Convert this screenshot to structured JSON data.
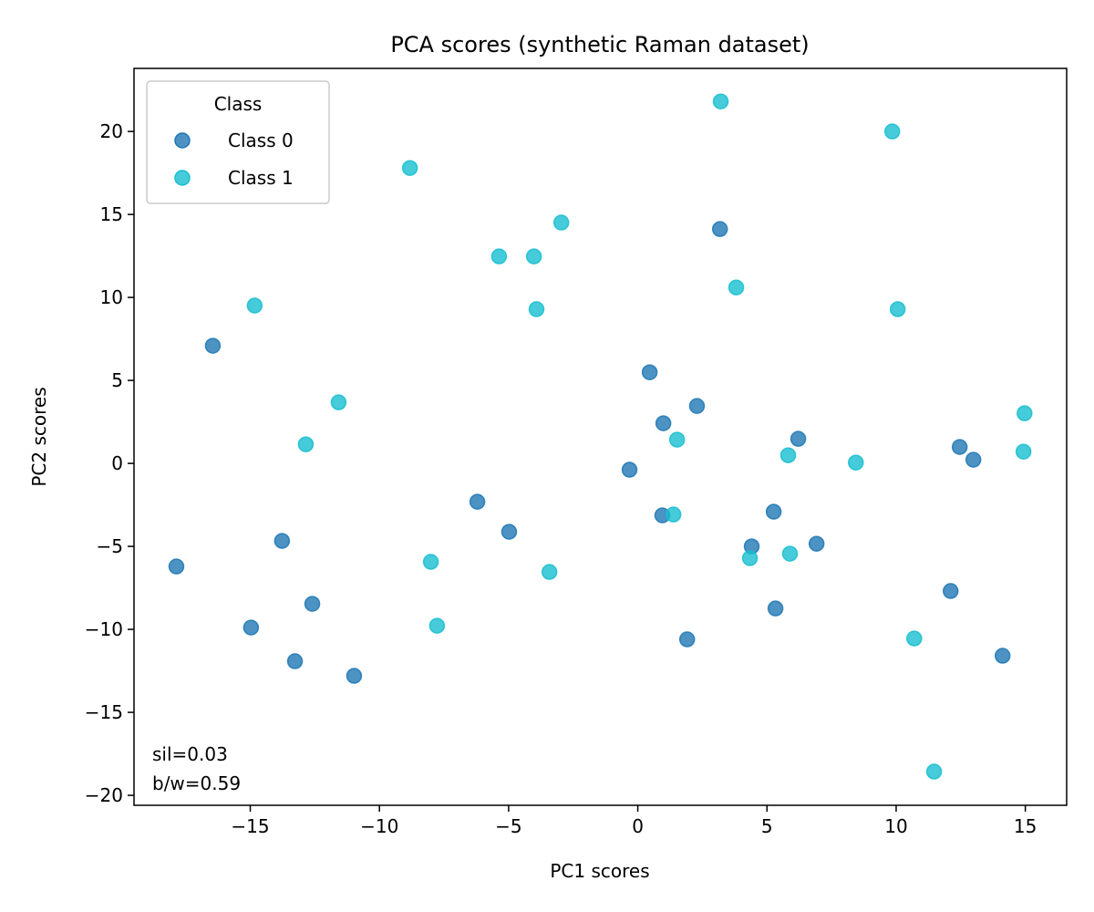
{
  "chart_data": {
    "type": "scatter",
    "title": "PCA scores (synthetic Raman dataset)",
    "xlabel": "PC1 scores",
    "ylabel": "PC2 scores",
    "xlim": [
      -19.5,
      16.6
    ],
    "ylim": [
      -20.6,
      23.8
    ],
    "xticks": [
      -15,
      -10,
      -5,
      0,
      5,
      10,
      15
    ],
    "yticks": [
      -20,
      -15,
      -10,
      -5,
      0,
      5,
      10,
      15,
      20
    ],
    "xtick_labels": [
      "−15",
      "−10",
      "−5",
      "0",
      "5",
      "10",
      "15"
    ],
    "ytick_labels": [
      "−20",
      "−15",
      "−10",
      "−5",
      "0",
      "5",
      "10",
      "15",
      "20"
    ],
    "grid": false,
    "legend": {
      "title": "Class",
      "placement": "top-left"
    },
    "annotations": [
      "sil=0.03",
      "b/w=0.59"
    ],
    "series": [
      {
        "name": "Class 0",
        "color": "#1f77b4",
        "points": [
          [
            -16.45,
            7.09
          ],
          [
            -17.86,
            -6.21
          ],
          [
            -14.97,
            -9.89
          ],
          [
            -13.77,
            -4.67
          ],
          [
            -12.6,
            -8.46
          ],
          [
            -13.27,
            -11.92
          ],
          [
            -10.98,
            -12.8
          ],
          [
            -6.21,
            -2.31
          ],
          [
            -4.98,
            -4.12
          ],
          [
            -0.32,
            -0.38
          ],
          [
            0.46,
            5.49
          ],
          [
            0.99,
            2.42
          ],
          [
            0.95,
            -3.13
          ],
          [
            2.29,
            3.46
          ],
          [
            1.91,
            -10.6
          ],
          [
            3.18,
            14.12
          ],
          [
            4.41,
            -5.0
          ],
          [
            5.26,
            -2.91
          ],
          [
            5.33,
            -8.74
          ],
          [
            6.21,
            1.48
          ],
          [
            6.92,
            -4.84
          ],
          [
            12.46,
            0.99
          ],
          [
            12.99,
            0.22
          ],
          [
            12.11,
            -7.69
          ],
          [
            14.12,
            -11.59
          ]
        ]
      },
      {
        "name": "Class 1",
        "color": "#17becf",
        "points": [
          [
            -14.83,
            9.51
          ],
          [
            -11.58,
            3.68
          ],
          [
            -12.85,
            1.15
          ],
          [
            -8.82,
            17.8
          ],
          [
            -8.01,
            -5.93
          ],
          [
            -7.77,
            -9.78
          ],
          [
            -5.37,
            12.47
          ],
          [
            -4.02,
            12.47
          ],
          [
            -2.96,
            14.51
          ],
          [
            -3.92,
            9.29
          ],
          [
            -3.42,
            -6.54
          ],
          [
            1.52,
            1.43
          ],
          [
            1.38,
            -3.08
          ],
          [
            3.21,
            21.81
          ],
          [
            3.81,
            10.6
          ],
          [
            4.34,
            -5.71
          ],
          [
            5.82,
            0.49
          ],
          [
            5.89,
            -5.44
          ],
          [
            8.44,
            0.05
          ],
          [
            9.85,
            20.0
          ],
          [
            10.06,
            9.29
          ],
          [
            10.7,
            -10.55
          ],
          [
            11.47,
            -18.57
          ],
          [
            14.97,
            3.02
          ],
          [
            14.93,
            0.71
          ]
        ]
      }
    ]
  }
}
